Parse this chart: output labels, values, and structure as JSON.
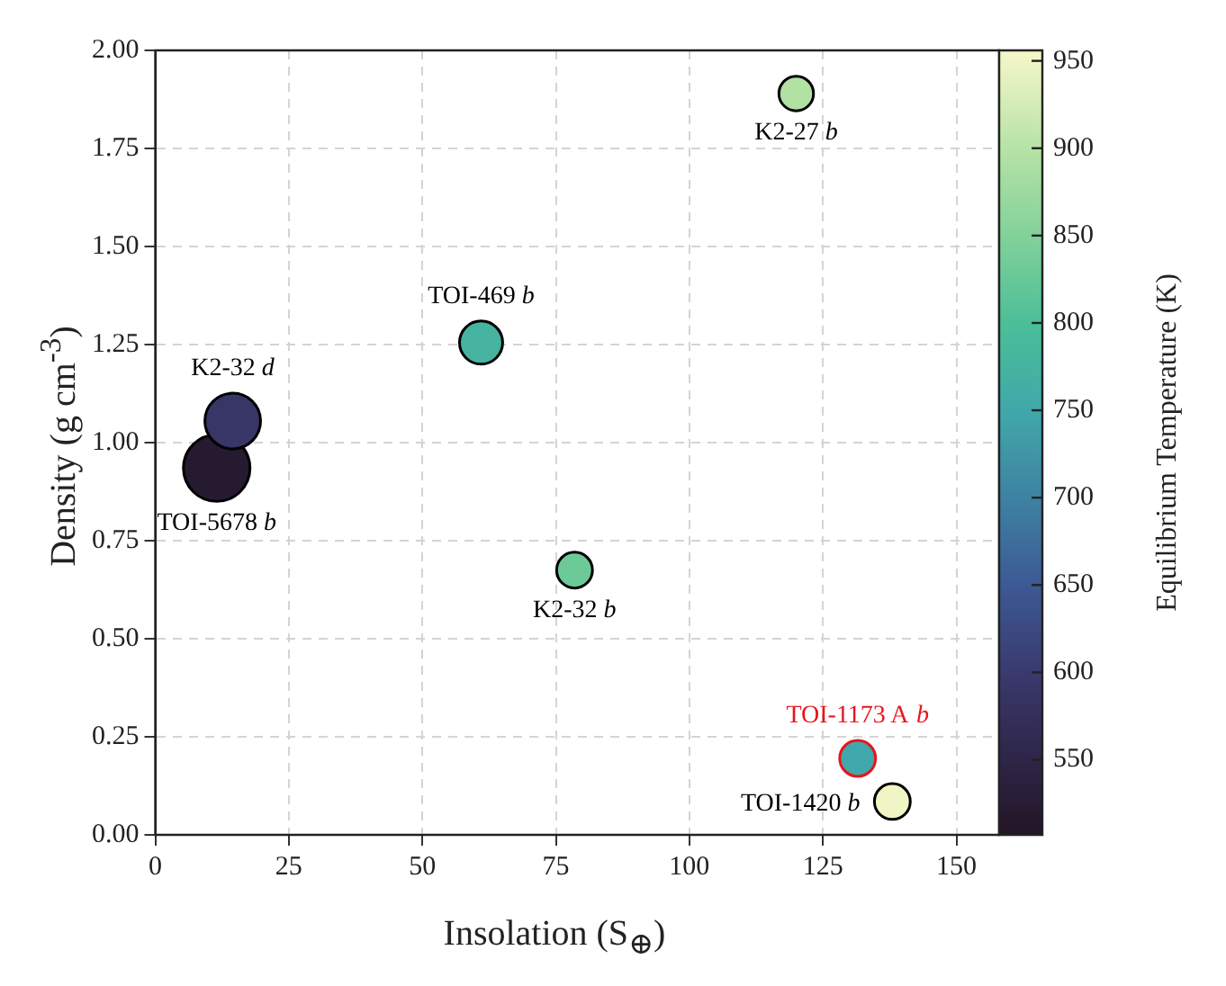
{
  "chart_data": {
    "type": "bubble",
    "xlabel": "Insolation (S$_{⊕}$)",
    "ylabel": "Density (g cm$^{-3}$)",
    "clabel": "Equilibrium Temperature (K)",
    "xlim": [
      0,
      158
    ],
    "xticks": [
      0,
      25,
      50,
      75,
      100,
      125,
      150
    ],
    "ylim": [
      0,
      2
    ],
    "yticks": [
      {
        "value": 0,
        "label": "0.00"
      },
      {
        "value": 0.25,
        "label": "0.25"
      },
      {
        "value": 0.5,
        "label": "0.50"
      },
      {
        "value": 0.75,
        "label": "0.75"
      },
      {
        "value": 1,
        "label": "1.00"
      },
      {
        "value": 1.25,
        "label": "1.25"
      },
      {
        "value": 1.5,
        "label": "1.50"
      },
      {
        "value": 1.75,
        "label": "1.75"
      },
      {
        "value": 2,
        "label": "2.00"
      }
    ],
    "clim": [
      507,
      956
    ],
    "cticks": [
      550,
      600,
      650,
      700,
      750,
      800,
      850,
      900,
      950
    ],
    "grid": true,
    "legend": false,
    "series": [
      {
        "name": "K2-27 b",
        "color": "#000000",
        "x": [
          120
        ],
        "values": [
          1.89
        ],
        "sizes": [
          0.27
        ],
        "cvalues": [
          895
        ]
      },
      {
        "name": "TOI-469 b",
        "color": "#000000",
        "x": [
          61
        ],
        "values": [
          1.255
        ],
        "sizes": [
          0.42
        ],
        "cvalues": [
          775
        ]
      },
      {
        "name": "K2-32 d",
        "color": "#000000",
        "x": [
          14.5
        ],
        "values": [
          1.055
        ],
        "sizes": [
          0.7
        ],
        "cvalues": [
          590
        ]
      },
      {
        "name": "TOI-5678 b",
        "color": "#000000",
        "x": [
          11.5
        ],
        "values": [
          0.935
        ],
        "sizes": [
          1
        ],
        "cvalues": [
          520
        ]
      },
      {
        "name": "K2-32 b",
        "color": "#000000",
        "x": [
          78.5
        ],
        "values": [
          0.675
        ],
        "sizes": [
          0.29
        ],
        "cvalues": [
          830
        ]
      },
      {
        "name": "TOI-1173 A b",
        "color": "#e8141b",
        "x": [
          131.5
        ],
        "values": [
          0.195
        ],
        "sizes": [
          0.29
        ],
        "cvalues": [
          750
        ]
      },
      {
        "name": "TOI-1420 b",
        "color": "#000000",
        "x": [
          138
        ],
        "values": [
          0.085
        ],
        "sizes": [
          0.29
        ],
        "cvalues": [
          950
        ]
      }
    ]
  }
}
